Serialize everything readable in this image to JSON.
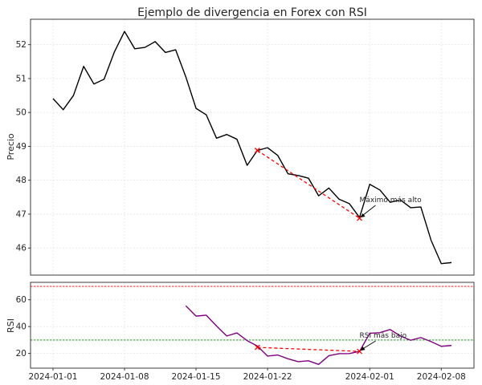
{
  "chart_data": [
    {
      "type": "line",
      "title": "Ejemplo de divergencia en Forex con RSI",
      "ylabel": "Precio",
      "ylim": [
        45.2,
        52.75
      ],
      "yticks": [
        46,
        47,
        48,
        49,
        50,
        51,
        52
      ],
      "grid": true,
      "x": [
        "2024-01-01",
        "2024-01-02",
        "2024-01-03",
        "2024-01-04",
        "2024-01-05",
        "2024-01-06",
        "2024-01-07",
        "2024-01-08",
        "2024-01-09",
        "2024-01-10",
        "2024-01-11",
        "2024-01-12",
        "2024-01-13",
        "2024-01-14",
        "2024-01-15",
        "2024-01-16",
        "2024-01-17",
        "2024-01-18",
        "2024-01-19",
        "2024-01-20",
        "2024-01-21",
        "2024-01-22",
        "2024-01-23",
        "2024-01-24",
        "2024-01-25",
        "2024-01-26",
        "2024-01-27",
        "2024-01-28",
        "2024-01-29",
        "2024-01-30",
        "2024-01-31",
        "2024-02-01",
        "2024-02-02",
        "2024-02-03",
        "2024-02-04",
        "2024-02-05",
        "2024-02-06",
        "2024-02-07",
        "2024-02-08",
        "2024-02-09"
      ],
      "series": [
        {
          "color": "#000000",
          "values": [
            50.41,
            50.08,
            50.5,
            51.36,
            50.84,
            50.98,
            51.78,
            52.39,
            51.88,
            51.92,
            52.09,
            51.77,
            51.85,
            51.05,
            50.12,
            49.93,
            49.24,
            49.35,
            49.21,
            48.44,
            48.88,
            48.96,
            48.73,
            48.19,
            48.14,
            48.06,
            47.54,
            47.77,
            47.44,
            47.31,
            46.9,
            47.88,
            47.71,
            47.35,
            47.42,
            47.19,
            47.21,
            46.23,
            45.54,
            45.57
          ]
        }
      ],
      "divergence_line": {
        "from": [
          "2024-01-21",
          48.88
        ],
        "to": [
          "2024-01-31",
          46.88
        ],
        "color": "#ff0000"
      },
      "annotation": {
        "text": "Máximo más alto",
        "at": [
          "2024-01-31",
          46.88
        ]
      }
    },
    {
      "type": "line",
      "ylabel": "RSI",
      "ylim": [
        9,
        73
      ],
      "yticks": [
        20,
        40,
        60
      ],
      "grid": true,
      "xticks": [
        "2024-01-01",
        "2024-01-08",
        "2024-01-15",
        "2024-01-22",
        "2024-02-01",
        "2024-02-08"
      ],
      "series": [
        {
          "color": "#800080",
          "start_index": 13,
          "values": [
            55.5,
            47.8,
            48.5,
            40.5,
            33.0,
            35.3,
            29.5,
            25.5,
            18.0,
            18.8,
            16.0,
            13.8,
            14.5,
            11.8,
            18.3,
            19.8,
            19.9,
            21.5,
            35.0,
            35.5,
            37.8,
            33.0,
            29.8,
            31.8,
            28.8,
            25.3,
            25.9
          ]
        }
      ],
      "hlines": [
        {
          "y": 70,
          "color": "#ff0000"
        },
        {
          "y": 30,
          "color": "#008000"
        }
      ],
      "divergence_line": {
        "from": [
          "2024-01-21",
          24.5
        ],
        "to": [
          "2024-01-31",
          21.5
        ],
        "color": "#ff0000"
      },
      "annotation": {
        "text": "RSI más bajo",
        "at": [
          "2024-01-31",
          21.5
        ]
      }
    }
  ]
}
